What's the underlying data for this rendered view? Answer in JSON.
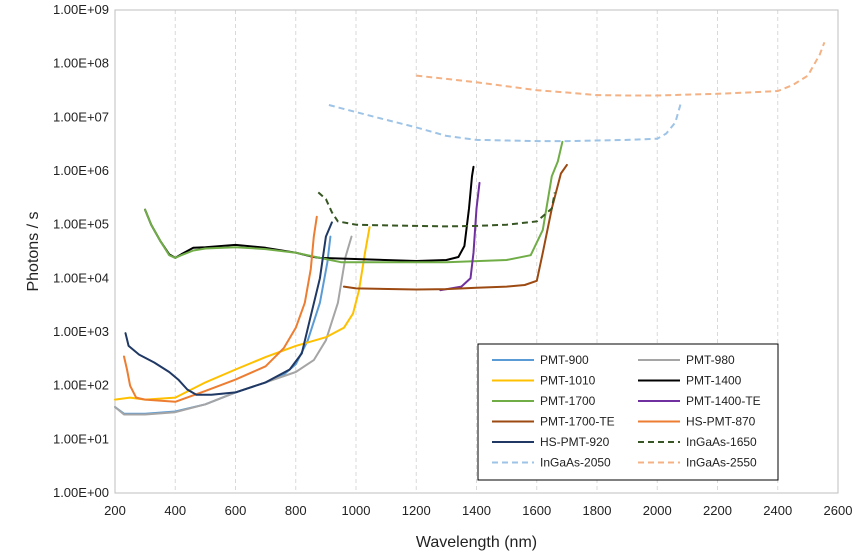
{
  "chart_data": {
    "type": "line",
    "title": "",
    "xlabel": "Wavelength (nm)",
    "ylabel": "Photons / s",
    "xlim": [
      200,
      2600
    ],
    "ylim": [
      1,
      1000000000
    ],
    "y_scale": "log",
    "x_ticks": [
      "200",
      "400",
      "600",
      "800",
      "1000",
      "1200",
      "1400",
      "1600",
      "1800",
      "2000",
      "2200",
      "2400",
      "2600"
    ],
    "y_ticks": [
      "1.00E+00",
      "1.00E+01",
      "1.00E+02",
      "1.00E+03",
      "1.00E+04",
      "1.00E+05",
      "1.00E+06",
      "1.00E+07",
      "1.00E+08",
      "1.00E+09"
    ],
    "grid": "vertical-dashed",
    "legend": "lower-right",
    "series": [
      {
        "name": "PMT-900",
        "color": "#5b9bd5",
        "dash": "solid",
        "points": [
          [
            200,
            40
          ],
          [
            230,
            30
          ],
          [
            300,
            30
          ],
          [
            400,
            33
          ],
          [
            500,
            45
          ],
          [
            600,
            75
          ],
          [
            700,
            115
          ],
          [
            760,
            160
          ],
          [
            800,
            250
          ],
          [
            840,
            700
          ],
          [
            880,
            3500
          ],
          [
            905,
            20000
          ],
          [
            915,
            60000
          ]
        ]
      },
      {
        "name": "PMT-980",
        "color": "#a5a5a5",
        "dash": "solid",
        "points": [
          [
            200,
            40
          ],
          [
            230,
            29
          ],
          [
            300,
            29
          ],
          [
            400,
            32
          ],
          [
            500,
            45
          ],
          [
            600,
            75
          ],
          [
            700,
            115
          ],
          [
            800,
            180
          ],
          [
            860,
            300
          ],
          [
            900,
            700
          ],
          [
            940,
            3500
          ],
          [
            965,
            25000
          ],
          [
            985,
            60000
          ]
        ]
      },
      {
        "name": "PMT-1010",
        "color": "#ffc000",
        "dash": "solid",
        "points": [
          [
            200,
            55
          ],
          [
            250,
            60
          ],
          [
            300,
            55
          ],
          [
            400,
            60
          ],
          [
            500,
            115
          ],
          [
            600,
            200
          ],
          [
            700,
            340
          ],
          [
            800,
            550
          ],
          [
            900,
            800
          ],
          [
            960,
            1200
          ],
          [
            990,
            2200
          ],
          [
            1010,
            6000
          ],
          [
            1030,
            30000
          ],
          [
            1045,
            90000
          ]
        ]
      },
      {
        "name": "PMT-1400",
        "color": "#000000",
        "dash": "solid",
        "points": [
          [
            300,
            190000
          ],
          [
            320,
            100000
          ],
          [
            350,
            50000
          ],
          [
            380,
            28000
          ],
          [
            400,
            24000
          ],
          [
            420,
            28000
          ],
          [
            460,
            37000
          ],
          [
            500,
            38000
          ],
          [
            600,
            42000
          ],
          [
            700,
            37000
          ],
          [
            800,
            30000
          ],
          [
            860,
            25000
          ],
          [
            880,
            24000
          ],
          [
            1200,
            21000
          ],
          [
            1300,
            22000
          ],
          [
            1340,
            25000
          ],
          [
            1360,
            40000
          ],
          [
            1375,
            200000
          ],
          [
            1385,
            800000
          ],
          [
            1390,
            1200000
          ]
        ]
      },
      {
        "name": "PMT-1700",
        "color": "#70ad47",
        "dash": "solid",
        "points": [
          [
            300,
            190000
          ],
          [
            320,
            100000
          ],
          [
            350,
            50000
          ],
          [
            380,
            27000
          ],
          [
            400,
            24000
          ],
          [
            420,
            27000
          ],
          [
            460,
            33000
          ],
          [
            500,
            36000
          ],
          [
            600,
            38000
          ],
          [
            700,
            35000
          ],
          [
            800,
            30000
          ],
          [
            880,
            24000
          ],
          [
            950,
            20000
          ],
          [
            1100,
            20000
          ],
          [
            1300,
            20000
          ],
          [
            1500,
            22000
          ],
          [
            1580,
            27000
          ],
          [
            1620,
            80000
          ],
          [
            1650,
            800000
          ],
          [
            1670,
            1500000
          ],
          [
            1685,
            3500000
          ]
        ]
      },
      {
        "name": "PMT-1400-TE",
        "color": "#7030a0",
        "dash": "solid",
        "points": [
          [
            1280,
            6000
          ],
          [
            1350,
            7000
          ],
          [
            1380,
            10000
          ],
          [
            1390,
            30000
          ],
          [
            1400,
            200000
          ],
          [
            1410,
            600000
          ]
        ]
      },
      {
        "name": "PMT-1700-TE",
        "color": "#9c4a12",
        "dash": "solid",
        "points": [
          [
            960,
            7000
          ],
          [
            1000,
            6500
          ],
          [
            1200,
            6200
          ],
          [
            1300,
            6300
          ],
          [
            1400,
            6700
          ],
          [
            1500,
            7000
          ],
          [
            1560,
            7500
          ],
          [
            1600,
            9000
          ],
          [
            1620,
            30000
          ],
          [
            1650,
            200000
          ],
          [
            1680,
            900000
          ],
          [
            1700,
            1300000
          ]
        ]
      },
      {
        "name": "HS-PMT-870",
        "color": "#ed7d31",
        "dash": "solid",
        "points": [
          [
            230,
            350
          ],
          [
            240,
            200
          ],
          [
            250,
            100
          ],
          [
            270,
            60
          ],
          [
            300,
            55
          ],
          [
            400,
            50
          ],
          [
            500,
            80
          ],
          [
            600,
            130
          ],
          [
            700,
            230
          ],
          [
            760,
            500
          ],
          [
            800,
            1200
          ],
          [
            830,
            3500
          ],
          [
            850,
            15000
          ],
          [
            860,
            60000
          ],
          [
            870,
            140000
          ]
        ]
      },
      {
        "name": "HS-PMT-920",
        "color": "#1f3864",
        "dash": "solid",
        "points": [
          [
            235,
            950
          ],
          [
            245,
            550
          ],
          [
            280,
            380
          ],
          [
            330,
            270
          ],
          [
            380,
            180
          ],
          [
            410,
            130
          ],
          [
            440,
            85
          ],
          [
            470,
            68
          ],
          [
            520,
            68
          ],
          [
            600,
            75
          ],
          [
            700,
            115
          ],
          [
            780,
            200
          ],
          [
            820,
            400
          ],
          [
            850,
            2000
          ],
          [
            880,
            10000
          ],
          [
            900,
            60000
          ],
          [
            920,
            110000
          ]
        ]
      },
      {
        "name": "InGaAs-1650",
        "color": "#375623",
        "dash": "dashed",
        "points": [
          [
            875,
            400000
          ],
          [
            900,
            300000
          ],
          [
            920,
            170000
          ],
          [
            940,
            115000
          ],
          [
            1000,
            100000
          ],
          [
            1100,
            97000
          ],
          [
            1200,
            95000
          ],
          [
            1300,
            93000
          ],
          [
            1400,
            95000
          ],
          [
            1500,
            100000
          ],
          [
            1600,
            115000
          ],
          [
            1650,
            200000
          ],
          [
            1660,
            400000
          ]
        ]
      },
      {
        "name": "InGaAs-2050",
        "color": "#9dc3e6",
        "dash": "dashed",
        "points": [
          [
            910,
            17000000
          ],
          [
            1000,
            12500000
          ],
          [
            1100,
            9000000
          ],
          [
            1200,
            6500000
          ],
          [
            1300,
            4500000
          ],
          [
            1400,
            3800000
          ],
          [
            1500,
            3700000
          ],
          [
            1600,
            3600000
          ],
          [
            1700,
            3600000
          ],
          [
            1800,
            3700000
          ],
          [
            1900,
            3800000
          ],
          [
            2000,
            4000000
          ],
          [
            2030,
            5000000
          ],
          [
            2060,
            8000000
          ],
          [
            2080,
            20000000
          ]
        ]
      },
      {
        "name": "InGaAs-2550",
        "color": "#f4b183",
        "dash": "dashed",
        "points": [
          [
            1200,
            60000000
          ],
          [
            1300,
            52000000
          ],
          [
            1400,
            45000000
          ],
          [
            1500,
            38000000
          ],
          [
            1600,
            32000000
          ],
          [
            1700,
            29000000
          ],
          [
            1800,
            26000000
          ],
          [
            1900,
            25500000
          ],
          [
            2000,
            25500000
          ],
          [
            2100,
            26500000
          ],
          [
            2200,
            27500000
          ],
          [
            2300,
            29000000
          ],
          [
            2400,
            31000000
          ],
          [
            2450,
            40000000
          ],
          [
            2500,
            60000000
          ],
          [
            2540,
            150000000
          ],
          [
            2555,
            250000000
          ]
        ]
      }
    ]
  }
}
